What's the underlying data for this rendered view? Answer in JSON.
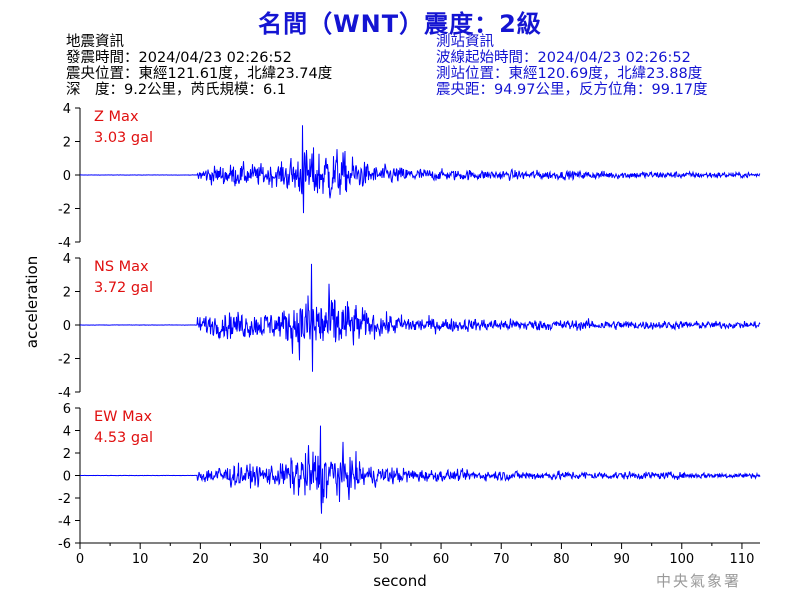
{
  "title": "名間（WNT）震度：2級",
  "earthquake_info": {
    "heading": "地震資訊",
    "time": "發震時間：2024/04/23 02:26:52",
    "location": "震央位置：東經121.61度，北緯23.74度",
    "depth_magnitude": "深　度：9.2公里，芮氏規模：6.1"
  },
  "station_info": {
    "heading": "測站資訊",
    "wave_start": "波線起始時間：2024/04/23 02:26:52",
    "location": "測站位置：東經120.69度，北緯23.88度",
    "distance_azimuth": "震央距：94.97公里，反方位角：99.17度"
  },
  "credit": "中央氣象署",
  "colors": {
    "trace": "#0000ff",
    "label": "#e01010",
    "title": "#1414d2"
  },
  "chart_data": [
    {
      "type": "line",
      "component": "Z",
      "label": "Z Max",
      "max_text": "3.03 gal",
      "peak": 3.03,
      "ylim": [
        -4,
        4
      ],
      "yticks": [
        "4",
        "2",
        "0",
        "-2",
        "-4"
      ],
      "xlim": [
        0,
        113
      ]
    },
    {
      "type": "line",
      "component": "NS",
      "label": "NS Max",
      "max_text": "3.72 gal",
      "peak": 3.72,
      "ylim": [
        -4,
        4
      ],
      "yticks": [
        "4",
        "2",
        "0",
        "-2",
        "-4"
      ],
      "xlim": [
        0,
        113
      ]
    },
    {
      "type": "line",
      "component": "EW",
      "label": "EW Max",
      "max_text": "4.53 gal",
      "peak": 4.53,
      "ylim": [
        -6,
        6
      ],
      "yticks": [
        "6",
        "4",
        "2",
        "0",
        "-2",
        "-4",
        "-6"
      ],
      "xlim": [
        0,
        113
      ]
    }
  ],
  "xaxis": {
    "label": "second",
    "ticks": [
      "0",
      "10",
      "20",
      "30",
      "40",
      "50",
      "60",
      "70",
      "80",
      "90",
      "100",
      "110"
    ]
  },
  "ylabel": "acceleration"
}
